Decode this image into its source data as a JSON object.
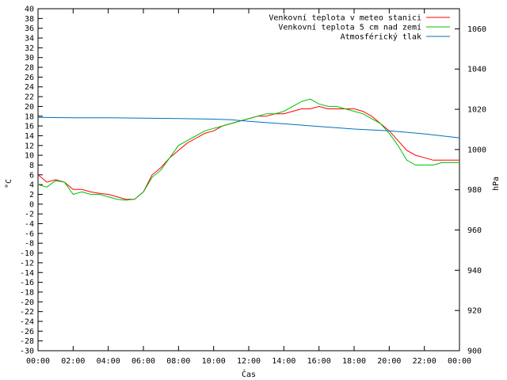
{
  "chart_data": {
    "type": "line",
    "title": "",
    "xlabel": "Čas",
    "ylabel_left": "°C",
    "ylabel_right": "hPa",
    "x_ticks": [
      "00:00",
      "02:00",
      "04:00",
      "06:00",
      "08:00",
      "10:00",
      "12:00",
      "14:00",
      "16:00",
      "18:00",
      "20:00",
      "22:00",
      "00:00"
    ],
    "x_range_hours": [
      0,
      24
    ],
    "y_left_range": [
      -30,
      40
    ],
    "y_left_ticks": [
      40,
      38,
      36,
      34,
      32,
      30,
      28,
      26,
      24,
      22,
      20,
      18,
      16,
      14,
      12,
      10,
      8,
      6,
      4,
      2,
      0,
      -2,
      -4,
      -6,
      -8,
      -10,
      -12,
      -14,
      -16,
      -18,
      -20,
      -22,
      -24,
      -26,
      -28,
      -30
    ],
    "y_right_range": [
      900,
      1070
    ],
    "y_right_ticks": [
      1060,
      1040,
      1020,
      1000,
      980,
      960,
      940,
      920,
      900
    ],
    "grid": false,
    "legend_position": "top-right",
    "series": [
      {
        "name": "Venkovní teplota v meteo stanici",
        "color": "#ff0000",
        "axis": "left",
        "x": [
          0,
          0.5,
          1,
          1.5,
          2,
          2.5,
          3,
          3.5,
          4,
          4.5,
          5,
          5.5,
          6,
          6.5,
          7,
          7.5,
          8,
          8.5,
          9,
          9.5,
          10,
          10.5,
          11,
          11.5,
          12,
          12.5,
          13,
          13.5,
          14,
          14.5,
          15,
          15.5,
          16,
          16.5,
          17,
          17.5,
          18,
          18.5,
          19,
          19.5,
          20,
          20.5,
          21,
          21.5,
          22,
          22.5,
          23,
          23.5,
          24
        ],
        "y": [
          6,
          4.5,
          5,
          4.5,
          3,
          3,
          2.5,
          2.2,
          2,
          1.5,
          1,
          1,
          2.5,
          6,
          7.5,
          9.5,
          11,
          12.5,
          13.5,
          14.5,
          15,
          16,
          16.5,
          17,
          17.5,
          18,
          18,
          18.5,
          18.5,
          19,
          19.5,
          19.5,
          20,
          19.5,
          19.5,
          19.5,
          19.5,
          19,
          18,
          16.5,
          15,
          13,
          11,
          10,
          9.5,
          9,
          9,
          9,
          9
        ]
      },
      {
        "name": "Venkovní teplota 5 cm nad zemí",
        "color": "#00c000",
        "axis": "left",
        "x": [
          0,
          0.5,
          1,
          1.5,
          2,
          2.5,
          3,
          3.5,
          4,
          4.5,
          5,
          5.5,
          6,
          6.5,
          7,
          7.5,
          8,
          8.5,
          9,
          9.5,
          10,
          10.5,
          11,
          11.5,
          12,
          12.5,
          13,
          13.5,
          14,
          14.5,
          15,
          15.5,
          16,
          16.5,
          17,
          17.5,
          18,
          18.5,
          19,
          19.5,
          20,
          20.5,
          21,
          21.5,
          22,
          22.5,
          23,
          23.5,
          24
        ],
        "y": [
          4,
          3.5,
          4.8,
          4.5,
          2,
          2.5,
          2,
          2,
          1.5,
          1,
          0.8,
          1,
          2.5,
          5.5,
          7,
          9.5,
          12,
          13,
          14,
          15,
          15.5,
          16,
          16.5,
          17,
          17.5,
          18,
          18.5,
          18.5,
          19,
          20,
          21,
          21.5,
          20.5,
          20,
          20,
          19.5,
          19,
          18.5,
          17.5,
          16.5,
          14.5,
          12,
          9,
          8,
          8,
          8,
          8.5,
          8.5,
          8.5
        ]
      },
      {
        "name": "Atmosférický tlak",
        "color": "#0070c0",
        "axis": "right",
        "x": [
          0,
          2,
          4,
          6,
          8,
          10,
          11,
          12,
          14,
          16,
          18,
          20,
          22,
          24
        ],
        "y": [
          1016,
          1015.8,
          1015.8,
          1015.6,
          1015.4,
          1015.1,
          1014.8,
          1014,
          1012.8,
          1011.5,
          1010.2,
          1009.3,
          1007.8,
          1005.8
        ]
      }
    ]
  }
}
